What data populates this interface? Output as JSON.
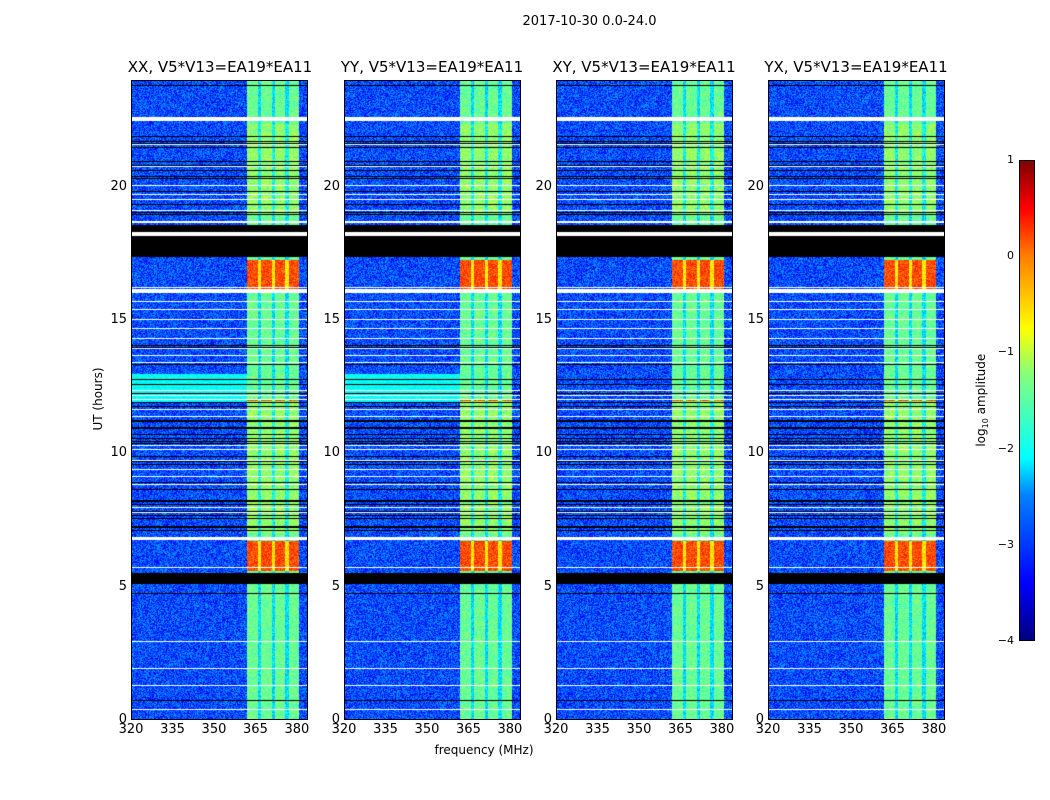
{
  "chart_data": {
    "type": "heatmap",
    "title": "2017-10-30 0.0-24.0",
    "xlabel": "frequency (MHz)",
    "ylabel": "UT (hours)",
    "xlim": [
      320,
      384
    ],
    "ylim": [
      0,
      24
    ],
    "xticks": [
      "320",
      "335",
      "350",
      "365",
      "380"
    ],
    "xtick_values": [
      320,
      335,
      350,
      365,
      380
    ],
    "yticks": [
      "0",
      "5",
      "10",
      "15",
      "20"
    ],
    "ytick_values": [
      0,
      5,
      10,
      15,
      20
    ],
    "panels": [
      {
        "title": "XX, V5*V13=EA19*EA11"
      },
      {
        "title": "YY, V5*V13=EA19*EA11"
      },
      {
        "title": "XY, V5*V13=EA19*EA11"
      },
      {
        "title": "YX, V5*V13=EA19*EA11"
      }
    ],
    "colorbar": {
      "label": "log10 amplitude",
      "label_main": "log",
      "label_sub": "10",
      "label_rest": " amplitude",
      "colormap": "jet",
      "range": [
        -4,
        1
      ],
      "ticks": [
        "1",
        "0",
        "−1",
        "−2",
        "−3",
        "−4"
      ],
      "tick_values": [
        1,
        0,
        -1,
        -2,
        -3,
        -4
      ]
    },
    "features": {
      "background_level": -3,
      "rfi_band_mhz": [
        362,
        381
      ],
      "rfi_band_level": -1.6,
      "flagged_black_hours": [
        [
          5.1,
          5.5
        ],
        [
          17.4,
          18.2
        ],
        [
          18.35,
          18.6
        ]
      ],
      "flagged_white_hours": [
        [
          22.5,
          22.65
        ],
        [
          16.05,
          16.2
        ],
        [
          6.75,
          6.85
        ],
        [
          18.2,
          18.35
        ]
      ],
      "bright_intervals_hours": [
        [
          16.2,
          17.3
        ],
        [
          5.6,
          6.7
        ],
        [
          12.0,
          12.05
        ]
      ],
      "bright_level": 0
    }
  }
}
